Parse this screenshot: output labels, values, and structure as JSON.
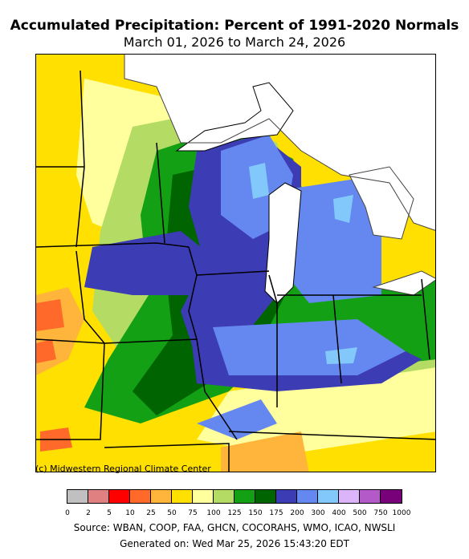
{
  "title": "Accumulated Precipitation: Percent of 1991-2020 Normals",
  "subtitle": "March 01, 2026 to March 24, 2026",
  "copyright": "(c) Midwestern Regional Climate Center",
  "source": "Source: WBAN,  COOP,  FAA,  GHCN,  COCORAHS,  WMO,  ICAO,  NWSLI",
  "generated": "Generated on: Wed Mar 25, 2026 15:43:20 EDT",
  "legend": {
    "ticks": [
      "0",
      "2",
      "5",
      "10",
      "25",
      "50",
      "75",
      "100",
      "125",
      "150",
      "175",
      "200",
      "300",
      "400",
      "500",
      "750",
      "1000"
    ],
    "colors": [
      "#c0c0c0",
      "#e08080",
      "#ff0000",
      "#ff6a2a",
      "#ffb43c",
      "#ffe000",
      "#ffff9e",
      "#b4dc64",
      "#14a014",
      "#006400",
      "#3c3cb4",
      "#6488f0",
      "#82c8fa",
      "#dcb4fa",
      "#b45ac8",
      "#780078"
    ]
  }
}
